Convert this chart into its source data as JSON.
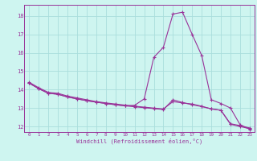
{
  "xlabel": "Windchill (Refroidissement éolien,°C)",
  "ylabel": "",
  "background_color": "#cef5f0",
  "grid_color": "#aadedc",
  "line_color": "#993399",
  "xlim": [
    -0.5,
    23.5
  ],
  "ylim": [
    11.7,
    18.6
  ],
  "xticks": [
    0,
    1,
    2,
    3,
    4,
    5,
    6,
    7,
    8,
    9,
    10,
    11,
    12,
    13,
    14,
    15,
    16,
    17,
    18,
    19,
    20,
    21,
    22,
    23
  ],
  "yticks": [
    12,
    13,
    14,
    15,
    16,
    17,
    18
  ],
  "x": [
    0,
    1,
    2,
    3,
    4,
    5,
    6,
    7,
    8,
    9,
    10,
    11,
    12,
    13,
    14,
    15,
    16,
    17,
    18,
    19,
    20,
    21,
    22,
    23
  ],
  "line1": [
    14.4,
    14.1,
    13.85,
    13.8,
    13.65,
    13.55,
    13.45,
    13.35,
    13.28,
    13.22,
    13.16,
    13.1,
    13.05,
    13.0,
    12.95,
    13.35,
    13.28,
    13.22,
    13.1,
    12.95,
    12.88,
    12.15,
    12.05,
    11.92
  ],
  "line2": [
    14.35,
    14.05,
    13.8,
    13.75,
    13.6,
    13.5,
    13.4,
    13.32,
    13.25,
    13.18,
    13.12,
    13.07,
    13.02,
    12.97,
    12.92,
    13.45,
    13.3,
    13.18,
    13.08,
    12.96,
    12.88,
    12.12,
    12.0,
    11.88
  ],
  "line3": [
    14.35,
    14.05,
    13.8,
    13.75,
    13.6,
    13.5,
    13.4,
    13.32,
    13.25,
    13.18,
    13.12,
    13.15,
    13.5,
    15.75,
    16.3,
    18.1,
    18.2,
    17.0,
    15.85,
    13.45,
    13.25,
    13.0,
    12.1,
    11.85
  ]
}
